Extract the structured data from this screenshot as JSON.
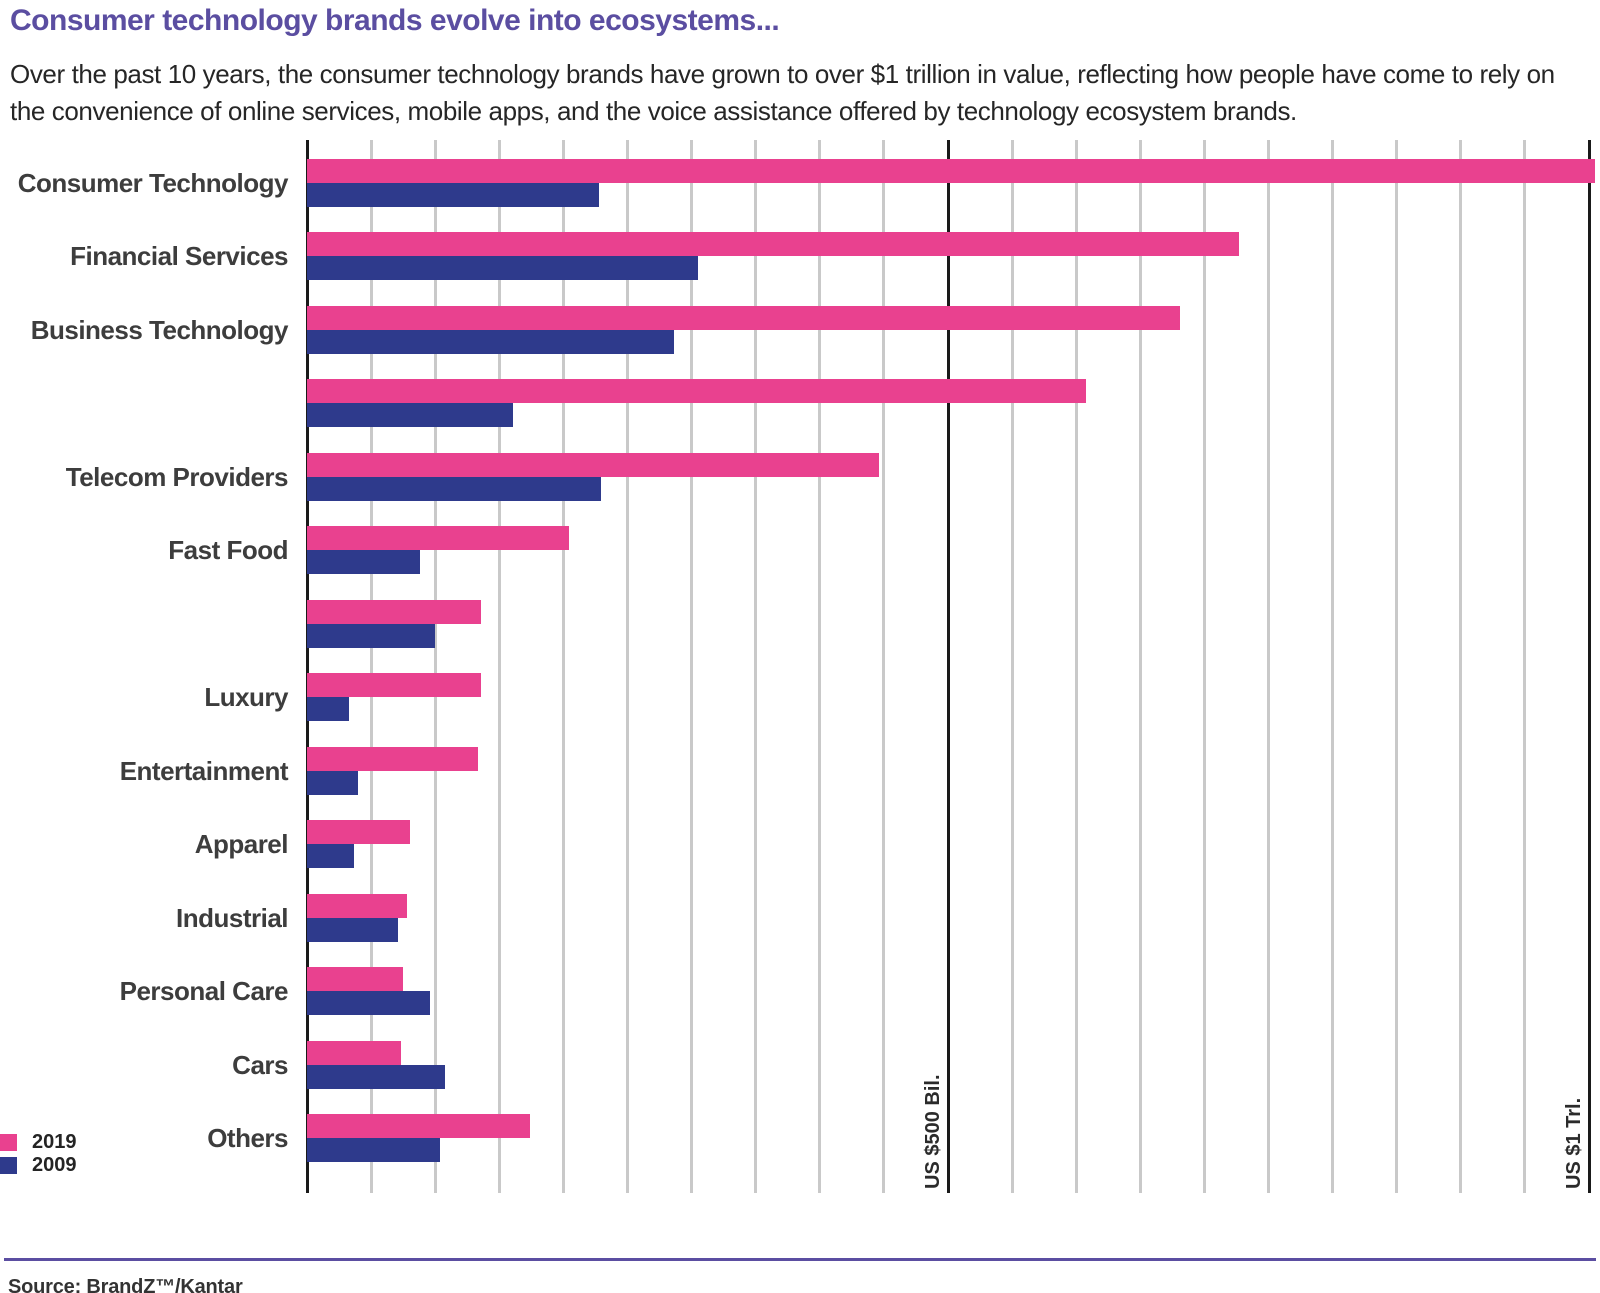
{
  "header": {
    "title": "Consumer technology brands evolve into ecosystems...",
    "subtitle": "Over the past 10 years, the consumer technology brands have grown to over $1 trillion in value, reflecting how people have come to rely on the convenience of online services, mobile apps, and the voice assistance offered by technology ecosystem brands."
  },
  "legend": [
    {
      "label": "2019",
      "color": "#e9418f"
    },
    {
      "label": "2009",
      "color": "#2e3a8c"
    }
  ],
  "source": "Source: BrandZ™/Kantar",
  "colors": {
    "accent_2019": "#e9418f",
    "accent_2009": "#2e3a8c",
    "title_purple": "#5b4ea1",
    "gridline_light": "#c9c9c9",
    "gridline_dark": "#1a1a1a"
  },
  "chart_data": {
    "type": "bar",
    "orientation": "horizontal",
    "unit": "US$ billions",
    "title": "Consumer technology brands evolve into ecosystems...",
    "categories": [
      "Consumer Technology",
      "Financial Services",
      "Business Technology",
      "",
      "Telecom Providers",
      "Fast Food",
      "",
      "Luxury",
      "Entertainment",
      "Apparel",
      "Industrial",
      "Personal Care",
      "Cars",
      "Others"
    ],
    "series": [
      {
        "name": "2019",
        "color": "#e9418f",
        "values": [
          1005,
          727,
          681,
          608,
          446,
          204,
          136,
          136,
          133,
          80,
          78,
          75,
          73,
          174
        ]
      },
      {
        "name": "2009",
        "color": "#2e3a8c",
        "values": [
          228,
          305,
          286,
          161,
          229,
          88,
          100,
          33,
          40,
          37,
          71,
          96,
          108,
          104
        ]
      }
    ],
    "xlim": [
      0,
      1010
    ],
    "gridline_interval": 50,
    "grid": "on",
    "labeled_ticks": [
      {
        "value": 500,
        "label": "US $500 Bil."
      },
      {
        "value": 1000,
        "label": "US $1 Trl."
      }
    ],
    "legend_position": "bottom-left"
  }
}
